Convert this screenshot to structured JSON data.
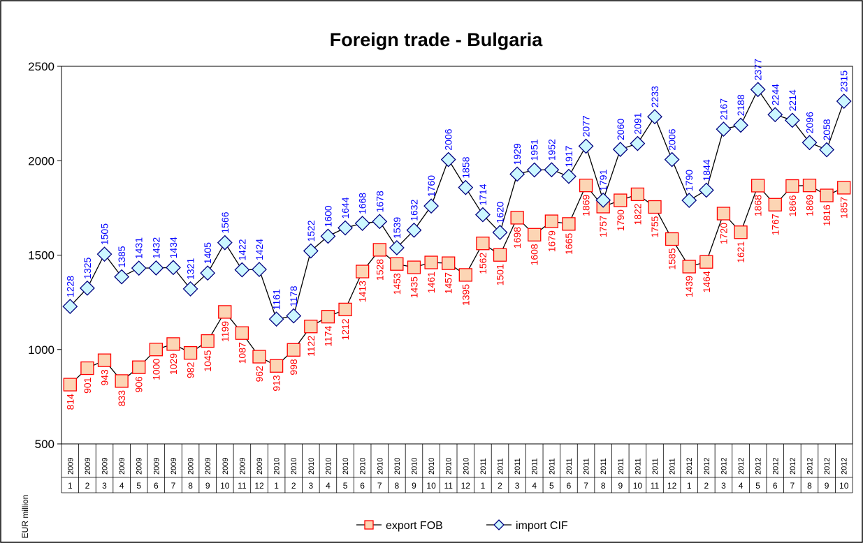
{
  "chart_data": {
    "type": "line",
    "title": "Foreign trade - Bulgaria",
    "y_label": "EUR million",
    "categories": [
      {
        "year": 2009,
        "month": 1
      },
      {
        "year": 2009,
        "month": 2
      },
      {
        "year": 2009,
        "month": 3
      },
      {
        "year": 2009,
        "month": 4
      },
      {
        "year": 2009,
        "month": 5
      },
      {
        "year": 2009,
        "month": 6
      },
      {
        "year": 2009,
        "month": 7
      },
      {
        "year": 2009,
        "month": 8
      },
      {
        "year": 2009,
        "month": 9
      },
      {
        "year": 2009,
        "month": 10
      },
      {
        "year": 2009,
        "month": 11
      },
      {
        "year": 2009,
        "month": 12
      },
      {
        "year": 2010,
        "month": 1
      },
      {
        "year": 2010,
        "month": 2
      },
      {
        "year": 2010,
        "month": 3
      },
      {
        "year": 2010,
        "month": 4
      },
      {
        "year": 2010,
        "month": 5
      },
      {
        "year": 2010,
        "month": 6
      },
      {
        "year": 2010,
        "month": 7
      },
      {
        "year": 2010,
        "month": 8
      },
      {
        "year": 2010,
        "month": 9
      },
      {
        "year": 2010,
        "month": 10
      },
      {
        "year": 2010,
        "month": 11
      },
      {
        "year": 2010,
        "month": 12
      },
      {
        "year": 2011,
        "month": 1
      },
      {
        "year": 2011,
        "month": 2
      },
      {
        "year": 2011,
        "month": 3
      },
      {
        "year": 2011,
        "month": 4
      },
      {
        "year": 2011,
        "month": 5
      },
      {
        "year": 2011,
        "month": 6
      },
      {
        "year": 2011,
        "month": 7
      },
      {
        "year": 2011,
        "month": 8
      },
      {
        "year": 2011,
        "month": 9
      },
      {
        "year": 2011,
        "month": 10
      },
      {
        "year": 2011,
        "month": 11
      },
      {
        "year": 2011,
        "month": 12
      },
      {
        "year": 2012,
        "month": 1
      },
      {
        "year": 2012,
        "month": 2
      },
      {
        "year": 2012,
        "month": 3
      },
      {
        "year": 2012,
        "month": 4
      },
      {
        "year": 2012,
        "month": 5
      },
      {
        "year": 2012,
        "month": 6
      },
      {
        "year": 2012,
        "month": 7
      },
      {
        "year": 2012,
        "month": 8
      },
      {
        "year": 2012,
        "month": 9
      },
      {
        "year": 2012,
        "month": 10
      }
    ],
    "series": [
      {
        "name": "export FOB",
        "color": "#ff0000",
        "marker": "square",
        "marker_fill": "#fcd5b4",
        "label_position": "below",
        "values": [
          814,
          901,
          943,
          833,
          906,
          1000,
          1029,
          982,
          1045,
          1199,
          1087,
          962,
          913,
          998,
          1122,
          1174,
          1212,
          1413,
          1528,
          1453,
          1435,
          1461,
          1457,
          1395,
          1562,
          1501,
          1698,
          1608,
          1679,
          1665,
          1869,
          1757,
          1790,
          1822,
          1755,
          1585,
          1439,
          1464,
          1720,
          1621,
          1868,
          1767,
          1866,
          1869,
          1816,
          1857
        ]
      },
      {
        "name": "import CIF",
        "color": "#0000ff",
        "marker": "diamond",
        "marker_fill": "#ccf7ff",
        "label_position": "above",
        "values": [
          1228,
          1325,
          1505,
          1385,
          1431,
          1432,
          1434,
          1321,
          1405,
          1566,
          1422,
          1424,
          1161,
          1178,
          1522,
          1600,
          1644,
          1668,
          1678,
          1539,
          1632,
          1760,
          2006,
          1858,
          1714,
          1620,
          1929,
          1951,
          1952,
          1917,
          2077,
          1791,
          2060,
          2091,
          2233,
          2006,
          1790,
          1844,
          2167,
          2188,
          2377,
          2244,
          2214,
          2096,
          2058,
          2315
        ]
      }
    ],
    "ylim": [
      500,
      2500
    ],
    "yticks": [
      500,
      1000,
      1500,
      2000,
      2500
    ],
    "legend": "bottom"
  }
}
